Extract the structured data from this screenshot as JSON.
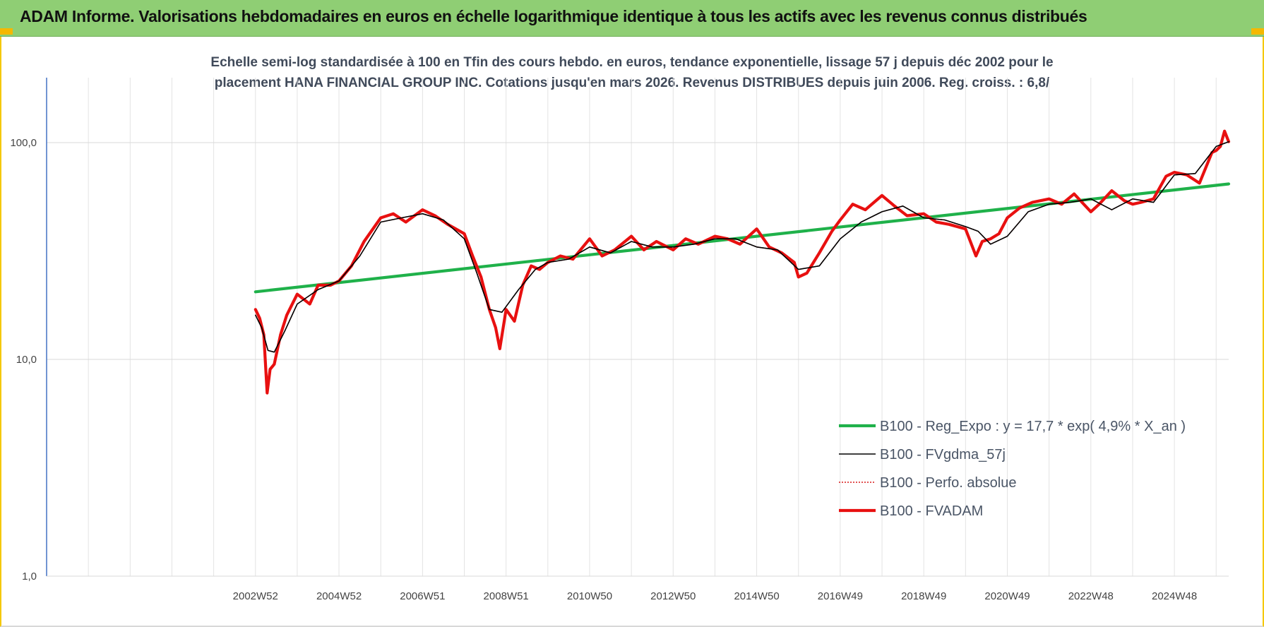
{
  "header": {
    "title": "ADAM Informe. Valorisations hebdomadaires en euros en échelle logarithmique identique à tous les actifs avec les revenus connus distribués"
  },
  "chart_data": {
    "type": "line",
    "title_line1": "Echelle semi-log standardisée à 100 en Tfin des cours hebdo. en euros, tendance exponentielle, lissage 57 j depuis déc 2002 pour le",
    "title_line2": "placement HANA FINANCIAL GROUP INC. Cotations jusqu'en mars 2026. Revenus DISTRIBUES depuis juin 2006. Reg. croiss. : 6,8/",
    "y_scale": "log",
    "ylim": [
      1,
      100
    ],
    "y_ticks": [
      {
        "value": 100,
        "label": "100,0"
      },
      {
        "value": 10,
        "label": "10,0"
      },
      {
        "value": 1,
        "label": "1,0"
      }
    ],
    "xlim": [
      1998.0,
      2026.3
    ],
    "x_ticks": [
      {
        "value": 2003.0,
        "label": "2002W52"
      },
      {
        "value": 2005.0,
        "label": "2004W52"
      },
      {
        "value": 2007.0,
        "label": "2006W51"
      },
      {
        "value": 2009.0,
        "label": "2008W51"
      },
      {
        "value": 2011.0,
        "label": "2010W50"
      },
      {
        "value": 2013.0,
        "label": "2012W50"
      },
      {
        "value": 2015.0,
        "label": "2014W50"
      },
      {
        "value": 2017.0,
        "label": "2016W49"
      },
      {
        "value": 2019.0,
        "label": "2018W49"
      },
      {
        "value": 2021.0,
        "label": "2020W49"
      },
      {
        "value": 2023.0,
        "label": "2022W48"
      },
      {
        "value": 2025.0,
        "label": "2024W48"
      }
    ],
    "grid": true,
    "legend_position": "bottom-right",
    "series": [
      {
        "name": "B100 - Reg_Expo : y = 17,7 * exp( 4,9% *  X_an )",
        "color": "#1fb14a",
        "style": "thick",
        "x": [
          2003.0,
          2026.3
        ],
        "values": [
          20.5,
          64.5
        ]
      },
      {
        "name": "B100 - FVgdma_57j",
        "color": "#000000",
        "style": "thin",
        "x": [
          2003.0,
          2003.15,
          2003.3,
          2003.45,
          2003.7,
          2004.0,
          2004.5,
          2005.0,
          2005.5,
          2006.0,
          2006.5,
          2007.0,
          2007.5,
          2008.0,
          2008.3,
          2008.6,
          2008.9,
          2009.3,
          2009.7,
          2010.0,
          2010.5,
          2011.0,
          2011.5,
          2012.0,
          2012.5,
          2013.0,
          2013.5,
          2014.0,
          2014.5,
          2015.0,
          2015.5,
          2016.0,
          2016.5,
          2017.0,
          2017.5,
          2018.0,
          2018.5,
          2019.0,
          2019.5,
          2020.0,
          2020.3,
          2020.6,
          2021.0,
          2021.5,
          2022.0,
          2022.5,
          2023.0,
          2023.5,
          2024.0,
          2024.5,
          2025.0,
          2025.5,
          2026.0,
          2026.3
        ],
        "values": [
          16.0,
          14.0,
          11.0,
          10.8,
          13.5,
          18.0,
          21.0,
          23.0,
          30.0,
          43.0,
          45.0,
          47.0,
          44.0,
          36.0,
          25.0,
          17.0,
          16.5,
          21.0,
          26.0,
          28.0,
          29.0,
          33.0,
          31.0,
          35.0,
          33.0,
          33.0,
          34.0,
          36.0,
          36.0,
          33.0,
          32.0,
          26.0,
          27.0,
          36.0,
          43.0,
          48.0,
          51.0,
          45.0,
          44.0,
          41.0,
          39.0,
          34.0,
          37.0,
          48.0,
          52.0,
          53.0,
          55.0,
          49.0,
          55.0,
          53.0,
          71.0,
          72.0,
          96.0,
          101.0
        ]
      },
      {
        "name": "B100 - Perfo. absolue",
        "color": "#d81b1b",
        "style": "dotted",
        "x": [
          2003.0,
          2003.15,
          2003.3,
          2003.45,
          2003.7,
          2004.0,
          2004.5,
          2005.0,
          2005.5,
          2006.0,
          2006.5,
          2007.0,
          2007.5,
          2008.0,
          2008.3,
          2008.6,
          2008.9,
          2009.3,
          2009.7,
          2010.0,
          2010.5,
          2011.0,
          2011.5,
          2012.0,
          2012.5,
          2013.0,
          2013.5,
          2014.0,
          2014.5,
          2015.0,
          2015.5,
          2016.0,
          2016.5,
          2017.0,
          2017.5,
          2018.0,
          2018.5,
          2019.0,
          2019.5,
          2020.0,
          2020.3,
          2020.6,
          2021.0,
          2021.5,
          2022.0,
          2022.5,
          2023.0,
          2023.5,
          2024.0,
          2024.5,
          2025.0,
          2025.5,
          2026.0,
          2026.3
        ],
        "values": [
          16.0,
          14.0,
          11.0,
          10.8,
          13.5,
          18.0,
          21.0,
          23.0,
          30.0,
          43.0,
          45.0,
          47.0,
          44.0,
          36.0,
          25.0,
          17.0,
          16.5,
          21.0,
          26.0,
          28.0,
          29.0,
          33.0,
          31.0,
          35.0,
          33.0,
          33.0,
          34.0,
          36.0,
          36.0,
          33.0,
          32.0,
          26.0,
          27.0,
          36.0,
          43.0,
          48.0,
          51.0,
          45.0,
          44.0,
          41.0,
          39.0,
          34.0,
          37.0,
          48.0,
          52.0,
          53.0,
          55.0,
          49.0,
          55.0,
          53.0,
          71.0,
          72.0,
          96.0,
          101.0
        ]
      },
      {
        "name": "B100 - FVADAM",
        "color": "#e81010",
        "style": "thick",
        "x": [
          2003.0,
          2003.1,
          2003.2,
          2003.28,
          2003.35,
          2003.45,
          2003.6,
          2003.75,
          2004.0,
          2004.3,
          2004.5,
          2004.8,
          2005.0,
          2005.3,
          2005.6,
          2006.0,
          2006.3,
          2006.6,
          2007.0,
          2007.3,
          2007.6,
          2008.0,
          2008.2,
          2008.4,
          2008.6,
          2008.75,
          2008.85,
          2009.0,
          2009.2,
          2009.4,
          2009.6,
          2009.8,
          2010.0,
          2010.3,
          2010.6,
          2011.0,
          2011.3,
          2011.6,
          2012.0,
          2012.3,
          2012.6,
          2013.0,
          2013.3,
          2013.6,
          2014.0,
          2014.3,
          2014.6,
          2015.0,
          2015.3,
          2015.6,
          2015.9,
          2016.0,
          2016.2,
          2016.5,
          2016.8,
          2017.0,
          2017.3,
          2017.6,
          2018.0,
          2018.3,
          2018.6,
          2019.0,
          2019.3,
          2019.6,
          2020.0,
          2020.25,
          2020.4,
          2020.6,
          2020.8,
          2021.0,
          2021.3,
          2021.6,
          2022.0,
          2022.3,
          2022.6,
          2023.0,
          2023.2,
          2023.5,
          2023.8,
          2024.0,
          2024.2,
          2024.5,
          2024.8,
          2025.0,
          2025.3,
          2025.6,
          2025.9,
          2026.0,
          2026.1,
          2026.2,
          2026.3
        ],
        "values": [
          17.0,
          15.5,
          13.0,
          7.0,
          9.0,
          9.5,
          13.0,
          16.0,
          20.0,
          18.0,
          22.0,
          22.0,
          23.0,
          27.0,
          35.0,
          45.0,
          47.0,
          43.0,
          49.0,
          46.0,
          42.0,
          38.0,
          30.0,
          24.0,
          17.0,
          14.0,
          11.2,
          17.0,
          15.0,
          22.0,
          27.0,
          26.0,
          28.0,
          30.0,
          29.0,
          36.0,
          30.0,
          32.0,
          37.0,
          32.0,
          35.0,
          32.0,
          36.0,
          34.0,
          37.0,
          36.0,
          34.0,
          40.0,
          33.0,
          31.0,
          28.0,
          24.0,
          25.0,
          31.0,
          39.0,
          44.0,
          52.0,
          49.0,
          57.0,
          51.0,
          46.0,
          47.0,
          43.0,
          42.0,
          40.0,
          30.0,
          35.0,
          36.0,
          38.0,
          45.0,
          50.0,
          53.0,
          55.0,
          52.0,
          58.0,
          48.0,
          52.0,
          60.0,
          54.0,
          52.0,
          53.0,
          55.0,
          70.0,
          73.0,
          71.0,
          65.0,
          90.0,
          92.0,
          96.0,
          113.0,
          101.0
        ]
      }
    ]
  }
}
